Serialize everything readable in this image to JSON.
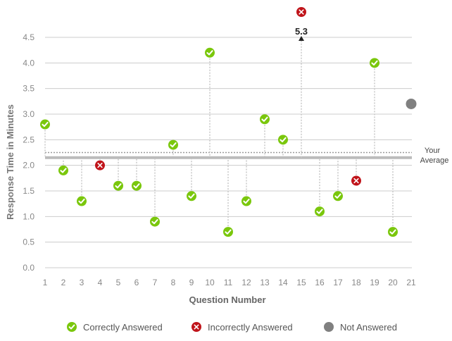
{
  "chart_data": {
    "type": "scatter",
    "title": "",
    "xlabel": "Question Number",
    "ylabel": "Response Time in Minutes",
    "xlim": [
      1,
      21
    ],
    "ylim": [
      0,
      4.5
    ],
    "xticks": [
      "1",
      "2",
      "3",
      "4",
      "5",
      "6",
      "7",
      "8",
      "9",
      "10",
      "11",
      "12",
      "13",
      "14",
      "15",
      "16",
      "17",
      "18",
      "19",
      "20",
      "21"
    ],
    "yticks": [
      "0.0",
      "0.5",
      "1.0",
      "1.5",
      "2.0",
      "2.5",
      "3.0",
      "3.5",
      "4.0",
      "4.5"
    ],
    "average_dotted": 2.25,
    "average_solid": 2.15,
    "average_label": [
      "Your",
      "Average"
    ],
    "overflow_label": "5.3",
    "points": [
      {
        "q": 1,
        "t": 2.8,
        "status": "correct"
      },
      {
        "q": 2,
        "t": 1.9,
        "status": "correct"
      },
      {
        "q": 3,
        "t": 1.3,
        "status": "correct"
      },
      {
        "q": 4,
        "t": 2.0,
        "status": "incorrect"
      },
      {
        "q": 5,
        "t": 1.6,
        "status": "correct"
      },
      {
        "q": 6,
        "t": 1.6,
        "status": "correct"
      },
      {
        "q": 7,
        "t": 0.9,
        "status": "correct"
      },
      {
        "q": 8,
        "t": 2.4,
        "status": "correct"
      },
      {
        "q": 9,
        "t": 1.4,
        "status": "correct"
      },
      {
        "q": 10,
        "t": 4.2,
        "status": "correct"
      },
      {
        "q": 11,
        "t": 0.7,
        "status": "correct"
      },
      {
        "q": 12,
        "t": 1.3,
        "status": "correct"
      },
      {
        "q": 13,
        "t": 2.9,
        "status": "correct"
      },
      {
        "q": 14,
        "t": 2.5,
        "status": "correct"
      },
      {
        "q": 15,
        "t": 5.3,
        "status": "incorrect",
        "overflow": true
      },
      {
        "q": 16,
        "t": 1.1,
        "status": "correct"
      },
      {
        "q": 17,
        "t": 1.4,
        "status": "correct"
      },
      {
        "q": 18,
        "t": 1.7,
        "status": "incorrect"
      },
      {
        "q": 19,
        "t": 4.0,
        "status": "correct"
      },
      {
        "q": 20,
        "t": 0.7,
        "status": "correct"
      },
      {
        "q": 21,
        "t": 3.2,
        "status": "not_answered"
      }
    ],
    "legend": [
      {
        "label": "Correctly Answered",
        "status": "correct"
      },
      {
        "label": "Incorrectly Answered",
        "status": "incorrect"
      },
      {
        "label": "Not Answered",
        "status": "not_answered"
      }
    ]
  },
  "colors": {
    "correct": "#7ac70c",
    "incorrect": "#c0141a",
    "not_answered": "#808080",
    "grid": "#cccccc",
    "axis_text": "#888888",
    "average_line": "#bbbbbb"
  }
}
